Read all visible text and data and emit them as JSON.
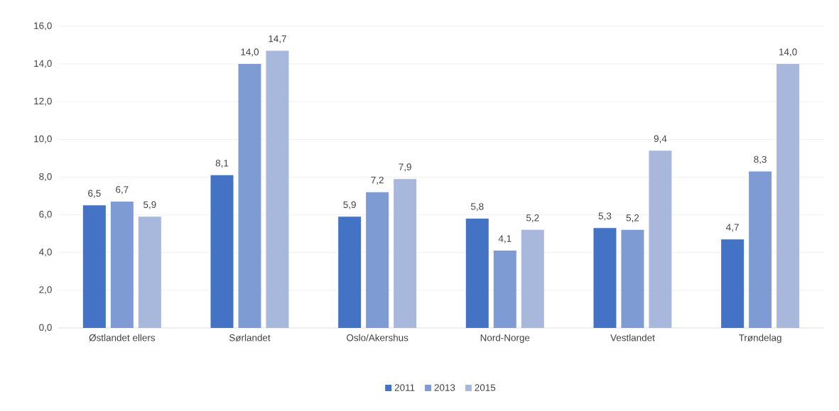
{
  "chart_data": {
    "type": "bar",
    "categories": [
      "Østlandet ellers",
      "Sørlandet",
      "Oslo/Akershus",
      "Nord-Norge",
      "Vestlandet",
      "Trøndelag"
    ],
    "series": [
      {
        "name": "2011",
        "color": "#4472c4",
        "values": [
          6.5,
          8.1,
          5.9,
          5.8,
          5.3,
          4.7
        ],
        "value_labels": [
          "6,5",
          "8,1",
          "5,9",
          "5,8",
          "5,3",
          "4,7"
        ]
      },
      {
        "name": "2013",
        "color": "#7f9bd3",
        "values": [
          6.7,
          14.0,
          7.2,
          4.1,
          5.2,
          8.3
        ],
        "value_labels": [
          "6,7",
          "14,0",
          "7,2",
          "4,1",
          "5,2",
          "8,3"
        ]
      },
      {
        "name": "2015",
        "color": "#a8b7dc",
        "values": [
          5.9,
          14.7,
          7.9,
          5.2,
          9.4,
          14.0
        ],
        "value_labels": [
          "5,9",
          "14,7",
          "7,9",
          "5,2",
          "9,4",
          "14,0"
        ]
      }
    ],
    "ylim": [
      0,
      16
    ],
    "yticks": [
      {
        "value": 0,
        "label": "0,0"
      },
      {
        "value": 2,
        "label": "2,0"
      },
      {
        "value": 4,
        "label": "4,0"
      },
      {
        "value": 6,
        "label": "6,0"
      },
      {
        "value": 8,
        "label": "8,0"
      },
      {
        "value": 10,
        "label": "10,0"
      },
      {
        "value": 12,
        "label": "12,0"
      },
      {
        "value": 14,
        "label": "14,0"
      },
      {
        "value": 16,
        "label": "16,0"
      }
    ],
    "grid": "y",
    "legend": "bottom"
  }
}
